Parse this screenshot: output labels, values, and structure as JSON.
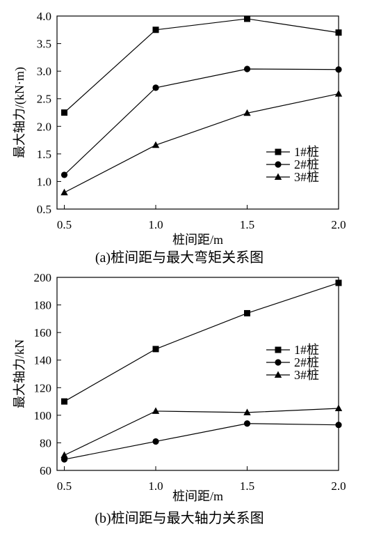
{
  "chart_data": [
    {
      "type": "line",
      "caption": "(a)桩间距与最大弯矩关系图",
      "xlabel": "桩间距/m",
      "ylabel": "最大轴力/(kN·m)",
      "x": [
        0.5,
        1.0,
        1.5,
        2.0
      ],
      "xlim": [
        0.46,
        2.0
      ],
      "ylim": [
        0.5,
        4.0
      ],
      "xticks": [
        "0.5",
        "1.0",
        "1.5",
        "2.0"
      ],
      "yticks": [
        "0.5",
        "1.0",
        "1.5",
        "2.0",
        "2.5",
        "3.0",
        "3.5",
        "4.0"
      ],
      "legend": "center-right",
      "series": [
        {
          "name": "1#桩",
          "marker": "square",
          "values": [
            2.25,
            3.75,
            3.95,
            3.7
          ]
        },
        {
          "name": "2#桩",
          "marker": "circle",
          "values": [
            1.12,
            2.7,
            3.04,
            3.03
          ]
        },
        {
          "name": "3#桩",
          "marker": "triangle",
          "values": [
            0.8,
            1.66,
            2.24,
            2.59
          ]
        }
      ]
    },
    {
      "type": "line",
      "caption": "(b)桩间距与最大轴力关系图",
      "xlabel": "桩间距/m",
      "ylabel": "最大轴力/kN",
      "x": [
        0.5,
        1.0,
        1.5,
        2.0
      ],
      "xlim": [
        0.46,
        2.0
      ],
      "ylim": [
        60,
        200
      ],
      "xticks": [
        "0.5",
        "1.0",
        "1.5",
        "2.0"
      ],
      "yticks": [
        "60",
        "80",
        "100",
        "120",
        "140",
        "160",
        "180",
        "200"
      ],
      "legend": "center-right",
      "series": [
        {
          "name": "1#桩",
          "marker": "square",
          "values": [
            110,
            148,
            174,
            196
          ]
        },
        {
          "name": "2#桩",
          "marker": "circle",
          "values": [
            68,
            81,
            94,
            93
          ]
        },
        {
          "name": "3#桩",
          "marker": "triangle",
          "values": [
            71,
            103,
            102,
            105
          ]
        }
      ]
    }
  ]
}
